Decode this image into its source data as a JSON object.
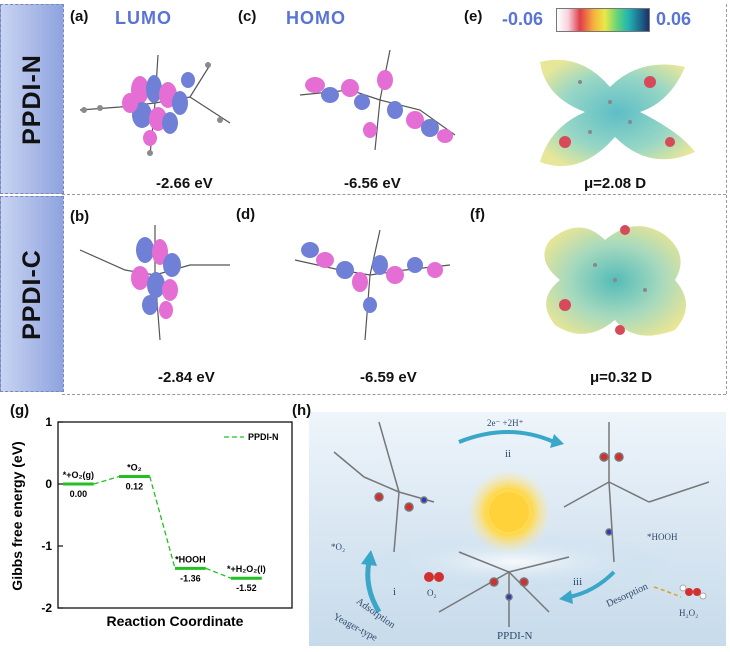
{
  "rows": [
    {
      "label": "PPDI-N"
    },
    {
      "label": "PPDI-C"
    }
  ],
  "panels": {
    "a": "(a)",
    "b": "(b)",
    "c": "(c)",
    "d": "(d)",
    "e": "(e)",
    "f": "(f)",
    "g": "(g)",
    "h": "(h)"
  },
  "orbital_titles": {
    "lumo": "LUMO",
    "homo": "HOMO"
  },
  "esp_scale": {
    "min": "-0.06",
    "max": "0.06"
  },
  "energies": {
    "n_lumo": "-2.66 eV",
    "n_homo": "-6.56 eV",
    "n_dipole": "μ=2.08 D",
    "c_lumo": "-2.84 eV",
    "c_homo": "-6.59 eV",
    "c_dipole": "μ=0.32 D"
  },
  "chart_data": {
    "type": "line",
    "title": "",
    "xlabel": "Reaction Coordinate",
    "ylabel": "Gibbs free energy (eV)",
    "ylim": [
      -2,
      1
    ],
    "yticks": [
      "1",
      "0",
      "-1",
      "-2"
    ],
    "series": [
      {
        "name": "PPDI-N",
        "color": "#22c022",
        "steps": [
          "*+O₂(g)",
          "*O₂",
          "*HOOH",
          "*+H₂O₂(l)"
        ],
        "values": [
          0.0,
          0.12,
          -1.36,
          -1.52
        ],
        "value_labels": [
          "0.00",
          "0.12",
          "-1.36",
          "-1.52"
        ]
      }
    ],
    "legend": "top-right"
  },
  "scheme": {
    "step_ii_label": "2e⁻ +2H⁺",
    "roman_i": "i",
    "roman_ii": "ii",
    "roman_iii": "iii",
    "o2_star": "*O₂",
    "o2": "O₂",
    "hooh_star": "*HOOH",
    "adsorption": "Adsorption",
    "yeager": "Yeager-type",
    "desorption": "Desorption",
    "h2o2": "H₂O₂",
    "molecule_name": "PPDI-N"
  }
}
